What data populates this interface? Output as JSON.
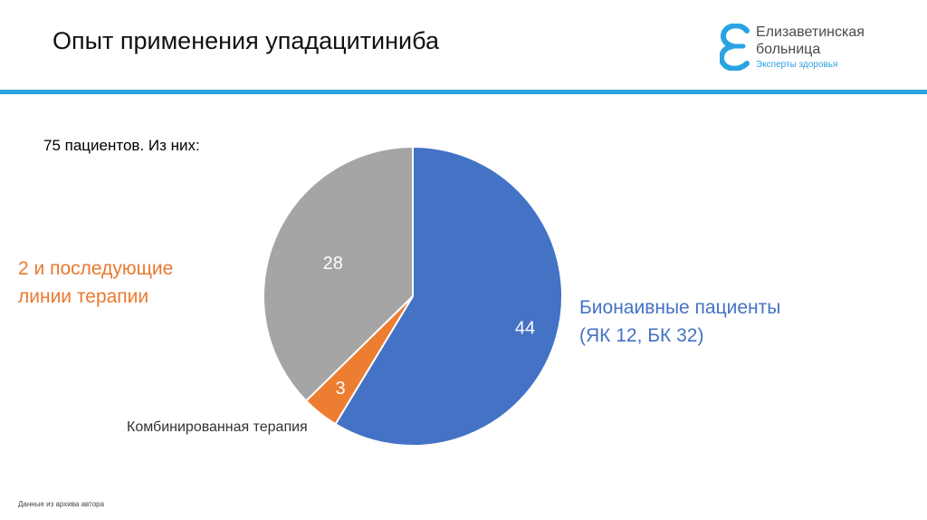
{
  "slide": {
    "title": "Опыт применения упадацитиниба",
    "subtitle": "75 пациентов. Из них:",
    "footnote": "Данные из архива автора"
  },
  "logo": {
    "line1": "Елизаветинская",
    "line2": "больница",
    "line3": "Эксперты здоровья",
    "accent": "#29a3e2"
  },
  "labels": {
    "blue_line1": "Бионаивные пациенты",
    "blue_line2": "(ЯК 12, БК 32)",
    "orange_line1": "2 и последующие",
    "orange_line2": "линии терапии",
    "gray": "Комбинированная терапия"
  },
  "chart_data": {
    "type": "pie",
    "total_shown": 75,
    "slices": [
      {
        "value": 44,
        "label": "44",
        "color": "#4472c4"
      },
      {
        "value": 3,
        "label": "3",
        "color": "#ed7d31"
      },
      {
        "value": 28,
        "label": "28",
        "color": "#a5a5a5"
      }
    ],
    "start": "12 o'clock",
    "direction": "clockwise",
    "legend": "none"
  }
}
